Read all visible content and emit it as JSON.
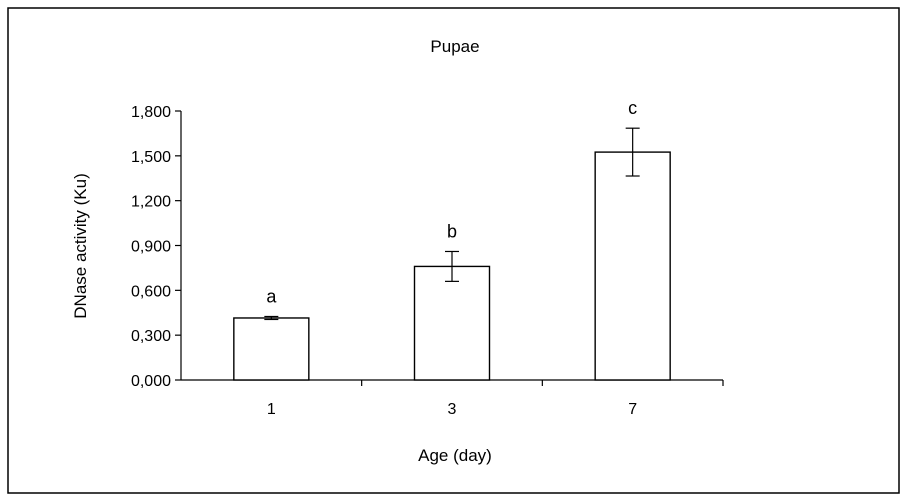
{
  "chart_data": {
    "type": "bar",
    "title": "Pupae",
    "xlabel": "Age (day)",
    "ylabel": "DNase activity (Ku)",
    "categories": [
      "1",
      "3",
      "7"
    ],
    "values": [
      0.415,
      0.76,
      1.525
    ],
    "error": [
      0.01,
      0.1,
      0.16
    ],
    "data_labels": [
      "a",
      "b",
      "c"
    ],
    "ylim": [
      0,
      1.8
    ],
    "yticks": [
      0,
      0.3,
      0.6,
      0.9,
      1.2,
      1.5,
      1.8
    ],
    "ytick_labels": [
      "0,000",
      "0,300",
      "0,600",
      "0,900",
      "1,200",
      "1,500",
      "1,800"
    ],
    "grid": false,
    "legend": "none",
    "bar_fill": "#ffffff",
    "bar_stroke": "#000000"
  }
}
